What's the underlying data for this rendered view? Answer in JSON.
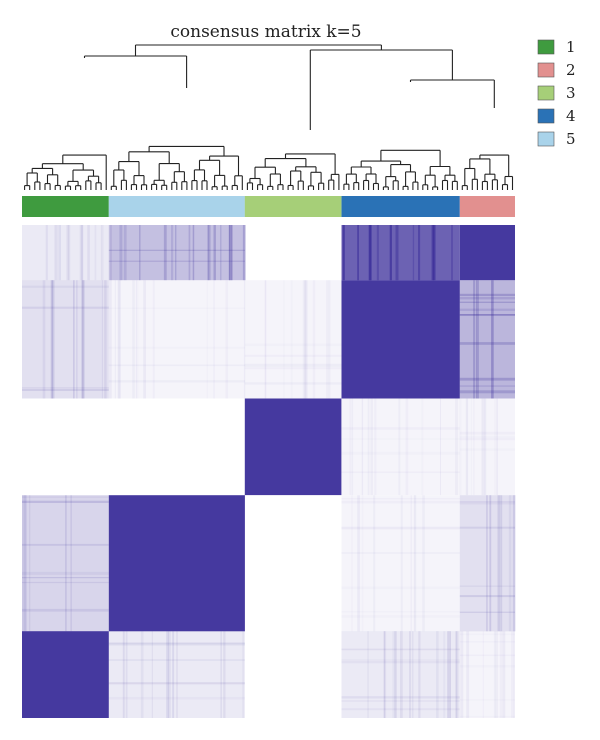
{
  "chart_data": {
    "type": "heatmap",
    "title": "consensus matrix k=5",
    "k": 5,
    "cell_color": "#3b2e9a",
    "value_range": [
      0,
      1
    ],
    "has_dendrogram": true,
    "cluster_bar_order": [
      "1",
      "5",
      "3",
      "4",
      "2"
    ],
    "cluster_bar_proportions": [
      0.176,
      0.276,
      0.196,
      0.24,
      0.112
    ],
    "legend": {
      "placement": "top-right",
      "items": [
        {
          "label": "1",
          "color": "#3f9b3f"
        },
        {
          "label": "2",
          "color": "#e2908f"
        },
        {
          "label": "3",
          "color": "#a6cf78"
        },
        {
          "label": "4",
          "color": "#2a72b6"
        },
        {
          "label": "5",
          "color": "#a9d3ea"
        }
      ]
    },
    "block_consensus": {
      "order": [
        "1",
        "5",
        "3",
        "4",
        "2"
      ],
      "rows_top_to_bottom": [
        "2",
        "4",
        "3",
        "5",
        "1"
      ],
      "values": [
        [
          0.1,
          0.3,
          0.0,
          0.75,
          0.95
        ],
        [
          0.15,
          0.05,
          0.05,
          0.95,
          0.35
        ],
        [
          0.0,
          0.0,
          0.95,
          0.05,
          0.05
        ],
        [
          0.2,
          0.95,
          0.0,
          0.05,
          0.15
        ],
        [
          0.95,
          0.1,
          0.0,
          0.1,
          0.05
        ]
      ]
    }
  }
}
